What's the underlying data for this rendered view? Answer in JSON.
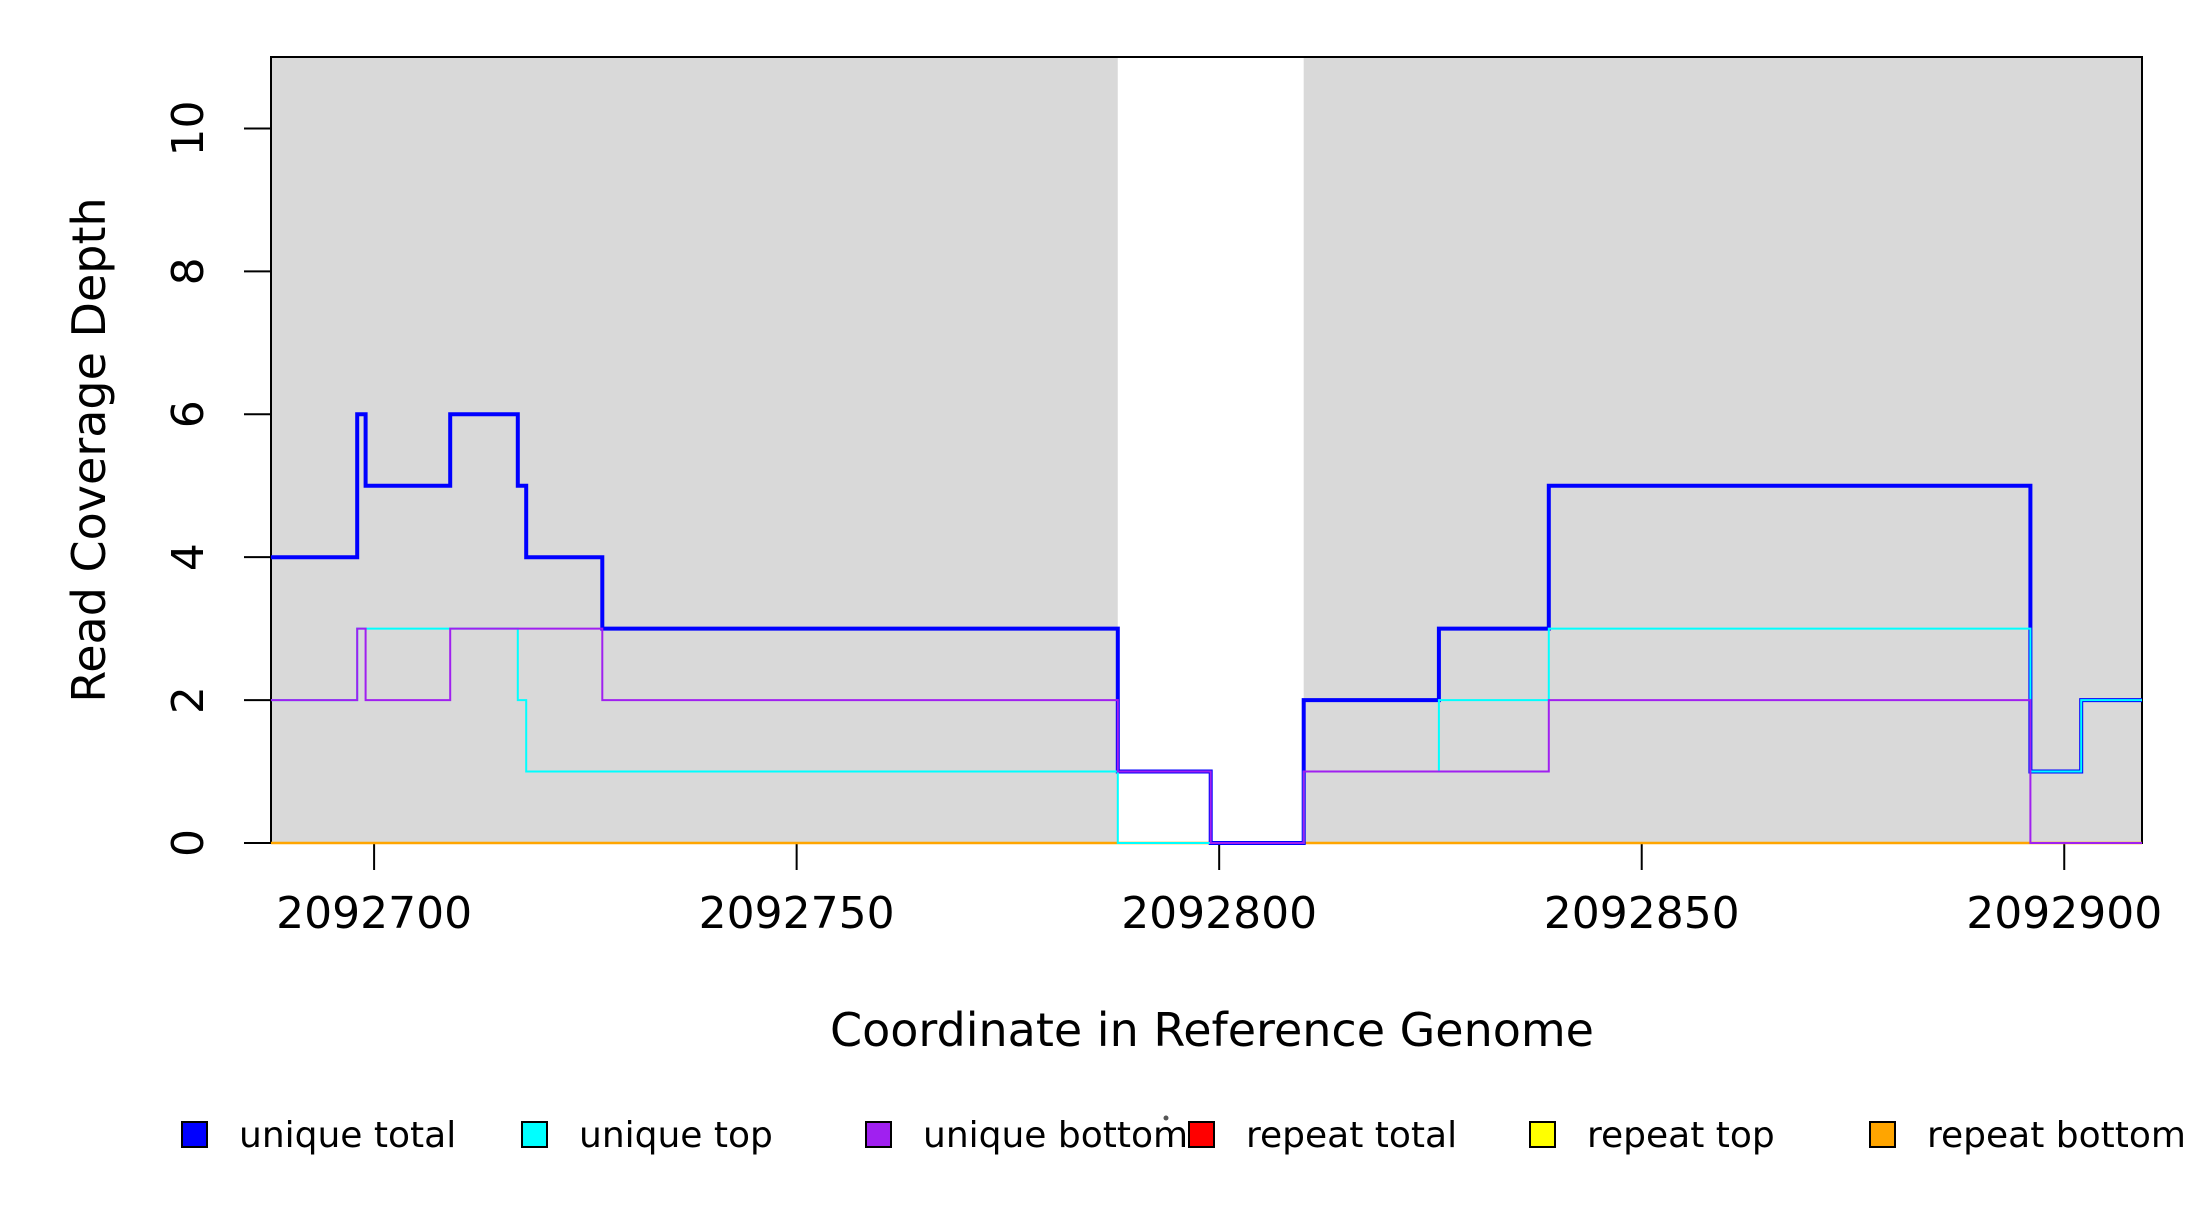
{
  "chart_data": {
    "type": "line",
    "subtype": "step-coverage",
    "title": "",
    "xlabel": "Coordinate in Reference Genome",
    "ylabel": "Read Coverage Depth",
    "xlim": [
      2092687.8,
      2092909.2
    ],
    "ylim": [
      0,
      11
    ],
    "x_ticks": [
      2092700,
      2092750,
      2092800,
      2092850,
      2092900
    ],
    "y_ticks": [
      0,
      2,
      4,
      6,
      8,
      10
    ],
    "grid": false,
    "background_color": "#ffffff",
    "annotation_regions": {
      "color": "#D9D9D9",
      "ranges": [
        [
          2092687.8,
          2092788
        ],
        [
          2092810,
          2092909.2
        ]
      ]
    },
    "series": [
      {
        "name": "unique total",
        "color": "#0000FF",
        "lwd": 4,
        "steps": [
          [
            2092687.8,
            4
          ],
          [
            2092698,
            6
          ],
          [
            2092699,
            5
          ],
          [
            2092709,
            6
          ],
          [
            2092717,
            5
          ],
          [
            2092718,
            4
          ],
          [
            2092727,
            3
          ],
          [
            2092788,
            1
          ],
          [
            2092799,
            0
          ],
          [
            2092810,
            2
          ],
          [
            2092826,
            3
          ],
          [
            2092839,
            5
          ],
          [
            2092896,
            1
          ],
          [
            2092902,
            2
          ]
        ]
      },
      {
        "name": "unique top",
        "color": "#00FFFF",
        "lwd": 2,
        "steps": [
          [
            2092687.8,
            2
          ],
          [
            2092698,
            3
          ],
          [
            2092717,
            2
          ],
          [
            2092718,
            1
          ],
          [
            2092788,
            0
          ],
          [
            2092810,
            1
          ],
          [
            2092826,
            2
          ],
          [
            2092839,
            3
          ],
          [
            2092896,
            1
          ],
          [
            2092902,
            2
          ]
        ]
      },
      {
        "name": "unique bottom",
        "color": "#A020F0",
        "lwd": 2,
        "steps": [
          [
            2092687.8,
            2
          ],
          [
            2092698,
            3
          ],
          [
            2092699,
            2
          ],
          [
            2092709,
            3
          ],
          [
            2092727,
            2
          ],
          [
            2092788,
            1
          ],
          [
            2092799,
            0
          ],
          [
            2092810,
            1
          ],
          [
            2092839,
            2
          ],
          [
            2092896,
            0
          ]
        ]
      },
      {
        "name": "repeat total",
        "color": "#FF0000",
        "lwd": 2,
        "steps": [
          [
            2092687.8,
            0
          ]
        ]
      },
      {
        "name": "repeat top",
        "color": "#FFFF00",
        "lwd": 2,
        "steps": [
          [
            2092687.8,
            0
          ]
        ]
      },
      {
        "name": "repeat bottom",
        "color": "#FFA500",
        "lwd": 2.5,
        "steps": [
          [
            2092687.8,
            0
          ]
        ]
      }
    ],
    "draw_order": [
      "repeat total",
      "repeat top",
      "repeat bottom",
      "unique total",
      "unique top",
      "unique bottom"
    ],
    "legend": {
      "position": "bottom",
      "entries": [
        "unique total",
        "unique top",
        "unique bottom",
        "repeat total",
        "repeat top",
        "repeat bottom"
      ]
    }
  }
}
